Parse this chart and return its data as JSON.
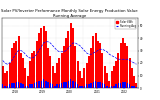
{
  "title": "Solar PV/Inverter Performance Monthly Solar Energy Production Value Running Average",
  "title_fontsize": 2.8,
  "bar_color": "#FF0000",
  "avg_line_color": "#0000FF",
  "background_color": "#FFFFFF",
  "grid_color": "#C8C8C8",
  "bar_values": [
    18,
    12,
    14,
    20,
    32,
    36,
    38,
    42,
    28,
    24,
    16,
    10,
    22,
    28,
    30,
    38,
    44,
    48,
    50,
    46,
    32,
    26,
    18,
    12,
    20,
    24,
    28,
    34,
    40,
    46,
    52,
    48,
    34,
    22,
    14,
    8,
    16,
    20,
    26,
    32,
    42,
    44,
    38,
    36,
    28,
    18,
    12,
    6,
    14,
    18,
    22,
    28,
    36,
    40,
    36,
    34,
    24,
    16,
    10,
    4
  ],
  "running_avg": [
    22,
    20,
    19,
    20,
    22,
    25,
    28,
    30,
    30,
    29,
    27,
    25,
    24,
    24,
    25,
    27,
    30,
    33,
    36,
    37,
    37,
    36,
    34,
    32,
    30,
    29,
    29,
    29,
    30,
    32,
    34,
    36,
    36,
    35,
    34,
    32,
    30,
    28,
    27,
    27,
    28,
    29,
    30,
    31,
    31,
    30,
    29,
    27,
    26,
    25,
    24,
    23,
    23,
    23,
    23,
    23,
    22,
    21,
    20,
    19
  ],
  "small_bar_values": [
    3,
    2,
    2,
    3,
    4,
    4,
    5,
    5,
    4,
    3,
    2,
    2,
    3,
    3,
    4,
    5,
    6,
    6,
    7,
    6,
    5,
    4,
    3,
    2,
    3,
    3,
    4,
    5,
    5,
    6,
    7,
    6,
    5,
    3,
    2,
    2,
    2,
    3,
    3,
    4,
    5,
    6,
    5,
    5,
    4,
    3,
    2,
    1,
    2,
    2,
    3,
    4,
    4,
    5,
    5,
    4,
    3,
    2,
    2,
    1
  ],
  "ylim": [
    0,
    56
  ],
  "yticks": [
    0,
    10,
    20,
    30,
    40,
    50
  ],
  "n_years": 5,
  "start_year": 2018,
  "legend_solar": "Solar kWh",
  "legend_avg": "Running Avg",
  "legend_color_solar": "#FF0000",
  "legend_color_avg": "#0000FF"
}
